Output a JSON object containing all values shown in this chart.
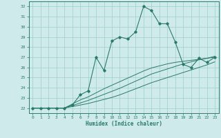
{
  "xlabel": "Humidex (Indice chaleur)",
  "bg_color": "#ceeaea",
  "grid_color": "#9ecece",
  "line_color": "#2a7a6a",
  "xlim": [
    -0.5,
    23.5
  ],
  "ylim": [
    21.5,
    32.5
  ],
  "xticks": [
    0,
    1,
    2,
    3,
    4,
    5,
    6,
    7,
    8,
    9,
    10,
    11,
    12,
    13,
    14,
    15,
    16,
    17,
    18,
    19,
    20,
    21,
    22,
    23
  ],
  "yticks": [
    22,
    23,
    24,
    25,
    26,
    27,
    28,
    29,
    30,
    31,
    32
  ],
  "main_line": [
    22,
    22,
    22,
    22,
    22,
    22.3,
    23.3,
    23.7,
    27.0,
    25.7,
    28.6,
    29.0,
    28.8,
    29.5,
    32.0,
    31.6,
    30.3,
    30.3,
    28.5,
    26.3,
    26.0,
    26.9,
    26.5,
    27.0
  ],
  "linear_lines": [
    [
      22,
      22,
      22,
      22,
      22,
      22.15,
      22.3,
      22.45,
      22.65,
      22.85,
      23.05,
      23.3,
      23.6,
      23.9,
      24.2,
      24.5,
      24.75,
      25.0,
      25.25,
      25.5,
      25.75,
      26.0,
      26.25,
      26.55
    ],
    [
      22,
      22,
      22,
      22,
      22,
      22.25,
      22.5,
      22.75,
      23.05,
      23.35,
      23.65,
      23.95,
      24.3,
      24.65,
      25.0,
      25.35,
      25.6,
      25.85,
      26.1,
      26.35,
      26.55,
      26.75,
      26.9,
      27.1
    ],
    [
      22,
      22,
      22,
      22,
      22,
      22.4,
      22.8,
      23.1,
      23.5,
      23.9,
      24.25,
      24.6,
      24.95,
      25.3,
      25.65,
      25.95,
      26.15,
      26.35,
      26.5,
      26.6,
      26.7,
      26.8,
      26.9,
      27.0
    ]
  ]
}
